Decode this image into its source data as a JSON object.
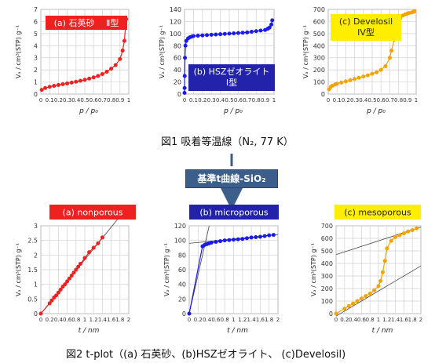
{
  "figure1_caption": "図1 吸着等温線（N₂, 77 K）",
  "figure2_caption": "図2 t-plot（(a) 石英砂、(b)HSZゼオライト、 (c)Develosil)",
  "flow_label": "基準t曲線-SiO₂",
  "colors": {
    "red": "#ee2020",
    "blue": "#1a1aee",
    "orange": "#f4a300",
    "bluebox": "#2222aa",
    "yellowbox": "#ffee00"
  },
  "chart_data": [
    {
      "id": "iso-a",
      "type": "scatter",
      "label": "(a) 石英砂　 Ⅱ型",
      "xlabel": "p / p₀",
      "ylabel": "Vₐ / cm³(STP) g⁻¹",
      "xlim": [
        0,
        1
      ],
      "ylim": [
        0,
        7
      ],
      "xticks": [
        "0",
        "0.1",
        "0.2",
        "0.3",
        "0.4",
        "0.5",
        "0.6",
        "0.7",
        "0.8",
        "0.9",
        "1"
      ],
      "yticks": [
        "0",
        "1",
        "2",
        "3",
        "4",
        "5",
        "6",
        "7"
      ],
      "color": "#ee2020",
      "series": [
        {
          "x": [
            0.01,
            0.05,
            0.1,
            0.15,
            0.2,
            0.25,
            0.3,
            0.35,
            0.4,
            0.45,
            0.5,
            0.55,
            0.6,
            0.65,
            0.7,
            0.75,
            0.8,
            0.85,
            0.9,
            0.93,
            0.95,
            0.97
          ],
          "y": [
            0.35,
            0.5,
            0.6,
            0.68,
            0.75,
            0.82,
            0.88,
            0.95,
            1.02,
            1.1,
            1.18,
            1.28,
            1.38,
            1.5,
            1.65,
            1.85,
            2.1,
            2.4,
            2.9,
            3.6,
            4.4,
            6.2
          ]
        }
      ]
    },
    {
      "id": "iso-b",
      "type": "scatter",
      "label": "(b) HSZゼオライト\nI型",
      "xlabel": "p / p₀",
      "ylabel": "Vₐ / cm³(STP) g⁻¹",
      "xlim": [
        0,
        1
      ],
      "ylim": [
        0,
        140
      ],
      "xticks": [
        "0",
        "0.1",
        "0.2",
        "0.3",
        "0.4",
        "0.5",
        "0.6",
        "0.7",
        "0.8",
        "0.9",
        "1"
      ],
      "yticks": [
        "0",
        "20",
        "40",
        "60",
        "80",
        "100",
        "120",
        "140"
      ],
      "color": "#1a1aee",
      "series": [
        {
          "x": [
            0,
            0.001,
            0.002,
            0.005,
            0.01,
            0.02,
            0.04,
            0.06,
            0.08,
            0.1,
            0.15,
            0.2,
            0.25,
            0.3,
            0.35,
            0.4,
            0.45,
            0.5,
            0.55,
            0.6,
            0.65,
            0.7,
            0.75,
            0.8,
            0.85,
            0.9,
            0.93,
            0.95,
            0.97,
            0.98
          ],
          "y": [
            2,
            10,
            30,
            60,
            80,
            88,
            92,
            94,
            95,
            96,
            96.5,
            97,
            97.5,
            98,
            98.5,
            99,
            99.5,
            100,
            100.5,
            101,
            101.5,
            102,
            103,
            104,
            105,
            106,
            108,
            110,
            115,
            122
          ]
        }
      ]
    },
    {
      "id": "iso-c",
      "type": "scatter",
      "label": "(c) Develosil\nIV型",
      "xlabel": "p / p₀",
      "ylabel": "Vₐ / cm³(STP) g⁻¹",
      "xlim": [
        0,
        1
      ],
      "ylim": [
        0,
        700
      ],
      "xticks": [
        "0",
        "0.1",
        "0.2",
        "0.3",
        "0.4",
        "0.5",
        "0.6",
        "0.7",
        "0.8",
        "0.9",
        "1"
      ],
      "yticks": [
        "0",
        "100",
        "200",
        "300",
        "400",
        "500",
        "600",
        "700"
      ],
      "color": "#f4a300",
      "series": [
        {
          "x": [
            0.01,
            0.03,
            0.05,
            0.08,
            0.1,
            0.15,
            0.2,
            0.25,
            0.3,
            0.35,
            0.4,
            0.45,
            0.5,
            0.55,
            0.6,
            0.65,
            0.7,
            0.72,
            0.75,
            0.78,
            0.8,
            0.82,
            0.85,
            0.88,
            0.9,
            0.92,
            0.95,
            0.97,
            0.98
          ],
          "y": [
            40,
            60,
            70,
            80,
            85,
            95,
            105,
            115,
            125,
            135,
            145,
            155,
            168,
            180,
            200,
            230,
            300,
            360,
            450,
            540,
            600,
            630,
            650,
            660,
            665,
            670,
            675,
            680,
            685
          ]
        }
      ]
    },
    {
      "id": "tp-a",
      "type": "scatter",
      "label": "(a) nonporous",
      "xlabel": "t / nm",
      "ylabel": "Vₐ / cm³(STP) g⁻¹",
      "xlim": [
        0,
        2
      ],
      "ylim": [
        0,
        3
      ],
      "xticks": [
        "0",
        "0.2",
        "0.4",
        "0.6",
        "0.8",
        "1",
        "1.2",
        "1.4",
        "1.6",
        "1.8",
        "2"
      ],
      "yticks": [
        "0",
        "0.5",
        "1",
        "1.5",
        "2",
        "2.5",
        "3"
      ],
      "color": "#ee2020",
      "series": [
        {
          "x": [
            0,
            0.2,
            0.25,
            0.3,
            0.35,
            0.4,
            0.45,
            0.5,
            0.55,
            0.6,
            0.65,
            0.7,
            0.75,
            0.8,
            0.85,
            0.9,
            1.0,
            1.1,
            1.2,
            1.3,
            1.4
          ],
          "y": [
            0,
            0.35,
            0.45,
            0.55,
            0.62,
            0.72,
            0.82,
            0.92,
            1.0,
            1.1,
            1.2,
            1.3,
            1.4,
            1.5,
            1.6,
            1.7,
            1.9,
            2.1,
            2.25,
            2.4,
            2.6
          ]
        }
      ],
      "fit_lines": [
        {
          "x": [
            0,
            1.95
          ],
          "y": [
            0,
            3.6
          ]
        }
      ]
    },
    {
      "id": "tp-b",
      "type": "scatter",
      "label": "(b) microporous",
      "xlabel": "t / nm",
      "ylabel": "Vₐ / cm³(STP) g⁻¹",
      "xlim": [
        0,
        2
      ],
      "ylim": [
        0,
        120
      ],
      "xticks": [
        "0",
        "0.2",
        "0.4",
        "0.6",
        "0.8",
        "1",
        "1.2",
        "1.4",
        "1.6",
        "1.8",
        "2"
      ],
      "yticks": [
        "0",
        "20",
        "40",
        "60",
        "80",
        "100",
        "120"
      ],
      "color": "#1a1aee",
      "series": [
        {
          "x": [
            0,
            0.3,
            0.35,
            0.4,
            0.45,
            0.5,
            0.6,
            0.7,
            0.8,
            0.9,
            1.0,
            1.1,
            1.2,
            1.3,
            1.4,
            1.5,
            1.6,
            1.7,
            1.8,
            1.9
          ],
          "y": [
            0,
            92,
            94,
            95,
            96,
            97,
            98,
            99,
            100,
            100.5,
            101,
            101.5,
            102,
            103,
            104,
            104.5,
            105,
            106,
            107,
            107.5
          ]
        }
      ],
      "fit_lines": [
        {
          "x": [
            0,
            2
          ],
          "y": [
            96,
            108
          ]
        },
        {
          "x": [
            0,
            0.45
          ],
          "y": [
            0,
            120
          ]
        }
      ]
    },
    {
      "id": "tp-c",
      "type": "scatter",
      "label": "(c) mesoporous",
      "xlabel": "t / nm",
      "ylabel": "Vₐ / cm³(STP) g⁻¹",
      "xlim": [
        0,
        2
      ],
      "ylim": [
        0,
        700
      ],
      "xticks": [
        "0",
        "0.2",
        "0.4",
        "0.6",
        "0.8",
        "1",
        "1.2",
        "1.4",
        "1.6",
        "1.8",
        "2"
      ],
      "yticks": [
        "0",
        "100",
        "200",
        "300",
        "400",
        "500",
        "600",
        "700"
      ],
      "color": "#f4a300",
      "series": [
        {
          "x": [
            0,
            0.2,
            0.3,
            0.4,
            0.5,
            0.6,
            0.7,
            0.8,
            0.9,
            1.0,
            1.05,
            1.1,
            1.15,
            1.2,
            1.3,
            1.4,
            1.5,
            1.6,
            1.7,
            1.8,
            1.9
          ],
          "y": [
            0,
            40,
            60,
            80,
            100,
            120,
            140,
            160,
            185,
            220,
            260,
            330,
            420,
            520,
            580,
            610,
            625,
            640,
            655,
            665,
            680
          ]
        }
      ],
      "fit_lines": [
        {
          "x": [
            0,
            2
          ],
          "y": [
            470,
            690
          ]
        },
        {
          "x": [
            0,
            2
          ],
          "y": [
            -20,
            380
          ]
        }
      ]
    }
  ]
}
